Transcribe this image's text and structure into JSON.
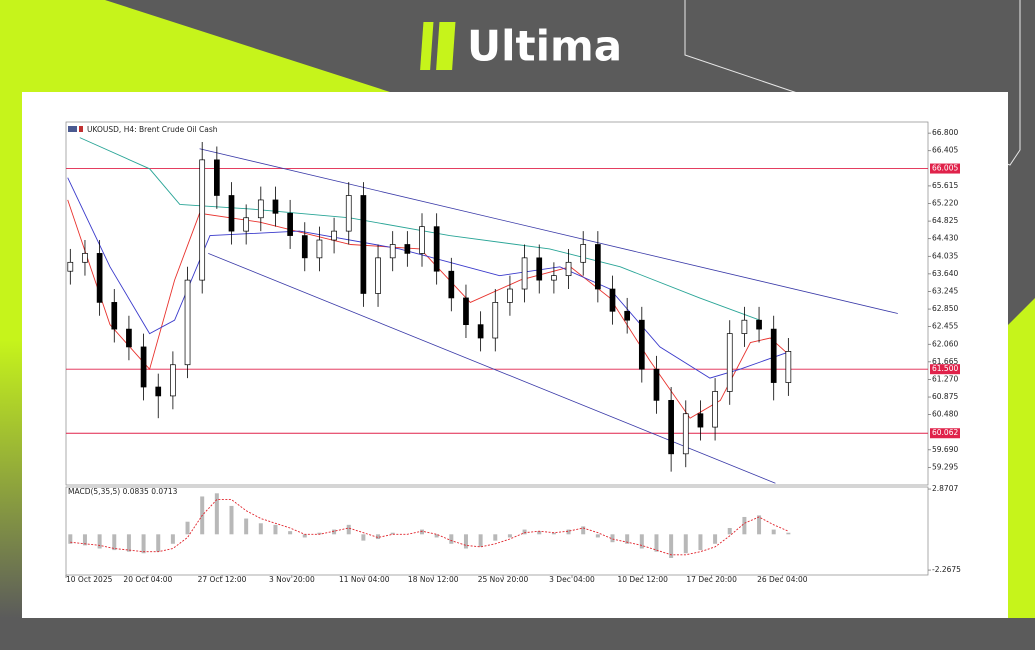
{
  "header": {
    "logo": "Ultima"
  },
  "chart_data": [
    {
      "type": "candlestick",
      "title": "UKOUSD, H4:  Brent Crude Oil Cash",
      "x": [
        0.5,
        2.2,
        3.9,
        5.6,
        7.3,
        9.0,
        10.7,
        12.4,
        14.1,
        15.8,
        17.5,
        19.2,
        20.9,
        22.6,
        24.3,
        26.0,
        27.7,
        29.4,
        31.1,
        32.8,
        34.5,
        36.2,
        37.9,
        39.6,
        41.3,
        43.0,
        44.7,
        46.4,
        48.1,
        49.8,
        51.5,
        53.2,
        54.9,
        56.6,
        58.3,
        60.0,
        61.7,
        63.4,
        65.1,
        66.8,
        68.5,
        70.2,
        71.9,
        73.6,
        75.3,
        77.0,
        78.7,
        80.4,
        82.1,
        83.8
      ],
      "open": [
        63.7,
        63.9,
        64.1,
        63.0,
        62.4,
        62.0,
        61.1,
        60.9,
        61.6,
        63.5,
        66.2,
        65.4,
        64.6,
        64.9,
        65.3,
        65.0,
        64.5,
        64.0,
        64.4,
        64.6,
        65.4,
        63.2,
        64.0,
        64.3,
        64.1,
        64.7,
        63.7,
        63.1,
        62.5,
        62.2,
        63.0,
        63.3,
        64.0,
        63.5,
        63.6,
        63.9,
        64.3,
        63.3,
        62.8,
        62.6,
        61.5,
        60.8,
        59.6,
        60.5,
        60.2,
        61.0,
        62.3,
        62.6,
        62.4,
        61.2
      ],
      "high": [
        64.2,
        64.4,
        64.4,
        63.3,
        62.7,
        62.3,
        61.4,
        61.9,
        63.8,
        66.6,
        66.5,
        65.7,
        65.2,
        65.6,
        65.6,
        65.3,
        64.8,
        64.7,
        64.9,
        65.7,
        65.7,
        64.3,
        64.6,
        64.6,
        65.0,
        65.0,
        64.0,
        63.4,
        62.8,
        63.3,
        63.6,
        64.3,
        64.3,
        63.9,
        64.2,
        64.6,
        64.6,
        63.6,
        63.1,
        62.9,
        61.8,
        61.1,
        60.8,
        60.8,
        61.3,
        62.6,
        62.9,
        62.9,
        62.7,
        62.2
      ],
      "low": [
        63.4,
        63.6,
        62.7,
        62.1,
        61.7,
        60.8,
        60.4,
        60.6,
        61.3,
        63.2,
        65.1,
        64.3,
        64.3,
        64.6,
        64.7,
        64.2,
        63.7,
        63.7,
        64.1,
        64.3,
        62.9,
        62.9,
        63.7,
        63.8,
        63.8,
        63.4,
        62.8,
        62.2,
        61.9,
        61.9,
        62.7,
        63.0,
        63.2,
        63.2,
        63.3,
        63.6,
        63.0,
        62.5,
        62.3,
        61.2,
        60.5,
        59.2,
        59.3,
        59.9,
        59.9,
        60.7,
        62.0,
        62.1,
        60.8,
        60.9
      ],
      "close": [
        63.9,
        64.1,
        63.0,
        62.4,
        62.0,
        61.1,
        60.9,
        61.6,
        63.5,
        66.2,
        65.4,
        64.6,
        64.9,
        65.3,
        65.0,
        64.5,
        64.0,
        64.4,
        64.6,
        65.4,
        63.2,
        64.0,
        64.3,
        64.1,
        64.7,
        63.7,
        63.1,
        62.5,
        62.2,
        63.0,
        63.3,
        64.0,
        63.5,
        63.6,
        63.9,
        64.3,
        63.3,
        62.8,
        62.6,
        61.5,
        60.8,
        59.6,
        60.5,
        60.2,
        61.0,
        62.3,
        62.6,
        62.4,
        61.2,
        61.9
      ],
      "up_color": "#ffffff",
      "down_color": "#000000",
      "lines": [
        {
          "color": "#e8332e",
          "x": [
            0.2,
            5.1,
            9.7,
            12.6,
            15.5,
            22.5,
            33.0,
            41.1,
            46.9,
            52.7,
            58.5,
            63.1,
            67.7,
            72.4,
            75.9,
            79.4,
            81.7,
            84.0
          ],
          "values": [
            65.3,
            62.5,
            61.5,
            63.5,
            65.0,
            64.8,
            64.3,
            64.2,
            63.0,
            63.5,
            63.8,
            63.1,
            61.7,
            60.4,
            60.8,
            62.1,
            62.2,
            61.8
          ]
        },
        {
          "color": "#3a3acb",
          "x": [
            0.2,
            5.1,
            9.7,
            12.6,
            16.7,
            27.1,
            38.7,
            50.3,
            57.3,
            63.1,
            68.9,
            74.7,
            78.2,
            84.0
          ],
          "values": [
            65.8,
            63.8,
            62.3,
            62.6,
            64.5,
            64.6,
            64.2,
            63.6,
            63.8,
            63.3,
            62.0,
            61.3,
            61.5,
            61.9
          ]
        },
        {
          "color": "#2aa597",
          "x": [
            1.6,
            9.7,
            13.2,
            21.3,
            32.9,
            44.5,
            56.1,
            64.3,
            73.5,
            80.5
          ],
          "values": [
            66.7,
            66.0,
            65.2,
            65.1,
            64.9,
            64.5,
            64.2,
            63.8,
            63.1,
            62.6
          ]
        }
      ],
      "trendlines": [
        {
          "color": "#3a3aa8",
          "x": [
            15.5,
            96.5
          ],
          "y": [
            66.45,
            62.75
          ]
        },
        {
          "color": "#3a3aa8",
          "x": [
            16.5,
            82.3
          ],
          "y": [
            64.1,
            58.94
          ]
        }
      ],
      "levels": [
        {
          "value": 66.005,
          "label": "66.005",
          "color": "#e0224a"
        },
        {
          "value": 61.5,
          "label": "61.500",
          "color": "#e0224a"
        },
        {
          "value": 60.062,
          "label": "60.062",
          "color": "#e0224a"
        }
      ],
      "xlim": [
        0,
        100
      ],
      "ylim": [
        58.9,
        67.05
      ],
      "yticks": [
        {
          "value": 66.8,
          "label": "66.800"
        },
        66.405,
        65.615,
        {
          "value": 65.22,
          "label": "65.220"
        },
        64.825,
        {
          "value": 64.43,
          "label": "64.430"
        },
        64.035,
        {
          "value": 63.64,
          "label": "63.640"
        },
        63.245,
        {
          "value": 62.85,
          "label": "62.850"
        },
        62.455,
        {
          "value": 62.06,
          "label": "62.060"
        },
        61.665,
        {
          "value": 61.27,
          "label": "61.270"
        },
        60.875,
        {
          "value": 60.48,
          "label": "60.480"
        },
        {
          "value": 59.69,
          "label": "59.690"
        },
        59.295
      ],
      "xticks": [
        {
          "value": 0,
          "label": "10 Oct 2025"
        },
        {
          "value": 9.5,
          "label": "20 Oct 04:00"
        },
        {
          "value": 18.1,
          "label": "27 Oct 12:00"
        },
        {
          "value": 26.2,
          "label": "3 Nov 20:00"
        },
        {
          "value": 34.6,
          "label": "11 Nov 04:00"
        },
        {
          "value": 42.6,
          "label": "18 Nov 12:00"
        },
        {
          "value": 50.7,
          "label": "25 Nov 20:00"
        },
        {
          "value": 58.7,
          "label": "3 Dec 04:00"
        },
        {
          "value": 66.9,
          "label": "10 Dec 12:00"
        },
        {
          "value": 74.9,
          "label": "17 Dec 20:00"
        },
        {
          "value": 83.1,
          "label": "26 Dec 04:00"
        }
      ]
    },
    {
      "type": "macd",
      "title": "MACD(5,35,5) 0.0835 0.0713",
      "x": [
        0.5,
        2.2,
        3.9,
        5.6,
        7.3,
        9.0,
        10.7,
        12.4,
        14.1,
        15.8,
        17.5,
        19.2,
        20.9,
        22.6,
        24.3,
        26.0,
        27.7,
        29.4,
        31.1,
        32.8,
        34.5,
        36.2,
        37.9,
        39.6,
        41.3,
        43.0,
        44.7,
        46.4,
        48.1,
        49.8,
        51.5,
        53.2,
        54.9,
        56.6,
        58.3,
        60.0,
        61.7,
        63.4,
        65.1,
        66.8,
        68.5,
        70.2,
        71.9,
        73.6,
        75.3,
        77.0,
        78.7,
        80.4,
        82.1,
        83.8
      ],
      "histogram": [
        -0.6,
        -0.7,
        -0.9,
        -1.0,
        -1.1,
        -1.2,
        -1.1,
        -0.6,
        0.8,
        2.4,
        2.6,
        1.8,
        1.0,
        0.7,
        0.6,
        0.2,
        -0.2,
        0.1,
        0.3,
        0.6,
        -0.4,
        -0.3,
        0.1,
        0.0,
        0.3,
        -0.2,
        -0.6,
        -0.9,
        -0.8,
        -0.4,
        -0.2,
        0.3,
        0.2,
        0.1,
        0.3,
        0.5,
        -0.2,
        -0.5,
        -0.6,
        -0.9,
        -1.1,
        -1.5,
        -1.2,
        -1.0,
        -0.6,
        0.4,
        1.1,
        1.2,
        0.3,
        0.1
      ],
      "signal": [
        -0.5,
        -0.6,
        -0.7,
        -0.9,
        -1.0,
        -1.1,
        -1.1,
        -0.9,
        -0.2,
        1.2,
        2.2,
        2.2,
        1.5,
        1.0,
        0.7,
        0.4,
        0.0,
        0.0,
        0.2,
        0.4,
        0.1,
        -0.2,
        0.0,
        0.0,
        0.2,
        0.0,
        -0.4,
        -0.7,
        -0.8,
        -0.6,
        -0.3,
        0.1,
        0.2,
        0.1,
        0.2,
        0.4,
        0.1,
        -0.3,
        -0.5,
        -0.7,
        -1.0,
        -1.3,
        -1.3,
        -1.1,
        -0.8,
        -0.1,
        0.7,
        1.1,
        0.6,
        0.2
      ],
      "histogram_color": "#b8b8b8",
      "signal_color": "#e0222a",
      "xlim": [
        0,
        100
      ],
      "ylim": [
        -2.58,
        3.0
      ],
      "yticks": [
        2.8707,
        -2.2675
      ]
    }
  ]
}
